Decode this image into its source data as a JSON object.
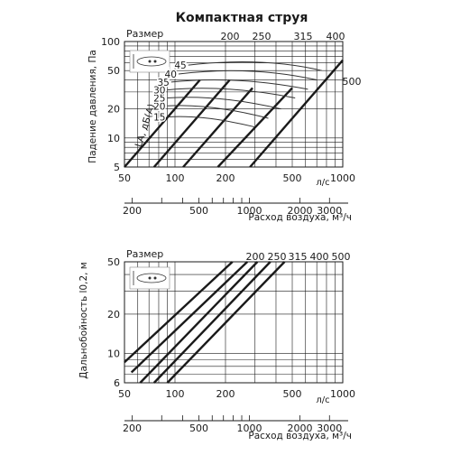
{
  "title": "Компактная струя",
  "chart_data": [
    {
      "type": "line",
      "name": "pressure_drop",
      "xscale": "log",
      "yscale": "log",
      "xlim": [
        50,
        1000
      ],
      "ylim": [
        5,
        100
      ],
      "ylabel": "Падение давления, Па",
      "x_unit": "л/с",
      "x2_label": "Расход воздуха, м³/ч",
      "size_label": "Размер",
      "noise_label": "LA, дБ(A)",
      "x_ticks": [
        "50",
        "100",
        "200",
        "500",
        "1000"
      ],
      "x2_ticks": [
        "200",
        "500",
        "1000",
        "2000",
        "3000"
      ],
      "y_ticks": [
        "5",
        "10",
        "20",
        "50",
        "100"
      ],
      "series": [
        {
          "name": "200",
          "points": [
            [
              50,
              5
            ],
            [
              141,
              40
            ]
          ]
        },
        {
          "name": "250",
          "points": [
            [
              75,
              5
            ],
            [
              212,
              40
            ]
          ]
        },
        {
          "name": "315",
          "points": [
            [
              112,
              5
            ],
            [
              290,
              33
            ]
          ]
        },
        {
          "name": "400",
          "points": [
            [
              180,
              5
            ],
            [
              500,
              33
            ]
          ]
        },
        {
          "name": "500",
          "points": [
            [
              280,
              5
            ],
            [
              1000,
              64
            ]
          ]
        }
      ],
      "size_labels": [
        "200",
        "250",
        "315",
        "400",
        "500"
      ],
      "noise_curves": [
        {
          "label": "15",
          "points": [
            [
              90,
              16.5
            ],
            [
              150,
              16
            ],
            [
              300,
              13
            ]
          ]
        },
        {
          "label": "20",
          "points": [
            [
              90,
              21.5
            ],
            [
              160,
              21
            ],
            [
              360,
              16
            ]
          ]
        },
        {
          "label": "25",
          "points": [
            [
              90,
              26
            ],
            [
              180,
              26
            ],
            [
              430,
              20
            ]
          ]
        },
        {
          "label": "30",
          "points": [
            [
              90,
              31.5
            ],
            [
              200,
              33
            ],
            [
              520,
              26
            ]
          ]
        },
        {
          "label": "35",
          "points": [
            [
              95,
              38
            ],
            [
              230,
              41
            ],
            [
              620,
              32
            ]
          ]
        },
        {
          "label": "40",
          "points": [
            [
              105,
              46
            ],
            [
              280,
              52
            ],
            [
              700,
              40
            ]
          ]
        },
        {
          "label": "45",
          "points": [
            [
              120,
              57
            ],
            [
              330,
              64
            ],
            [
              750,
              50
            ]
          ]
        }
      ]
    },
    {
      "type": "line",
      "name": "throw",
      "xscale": "log",
      "yscale": "log",
      "xlim": [
        50,
        1000
      ],
      "ylim": [
        6,
        50
      ],
      "ylabel": "Дальнобойность l0,2, м",
      "x_unit": "л/с",
      "x2_label": "Расход воздуха, м³/ч",
      "size_label": "Размер",
      "x_ticks": [
        "50",
        "100",
        "200",
        "500",
        "1000"
      ],
      "x2_ticks": [
        "200",
        "500",
        "1000",
        "2000",
        "3000"
      ],
      "y_ticks": [
        "6",
        "10",
        "20",
        "50"
      ],
      "series": [
        {
          "name": "200",
          "points": [
            [
              50,
              8.6
            ],
            [
              220,
              50
            ]
          ]
        },
        {
          "name": "250",
          "points": [
            [
              55,
              7.2
            ],
            [
              270,
              50
            ]
          ]
        },
        {
          "name": "315",
          "points": [
            [
              62,
              6
            ],
            [
              310,
              50
            ]
          ]
        },
        {
          "name": "400",
          "points": [
            [
              75,
              6
            ],
            [
              370,
              50
            ]
          ]
        },
        {
          "name": "500",
          "points": [
            [
              90,
              6
            ],
            [
              450,
              50
            ]
          ]
        }
      ],
      "size_labels": [
        "200",
        "250",
        "315",
        "400",
        "500"
      ]
    }
  ]
}
